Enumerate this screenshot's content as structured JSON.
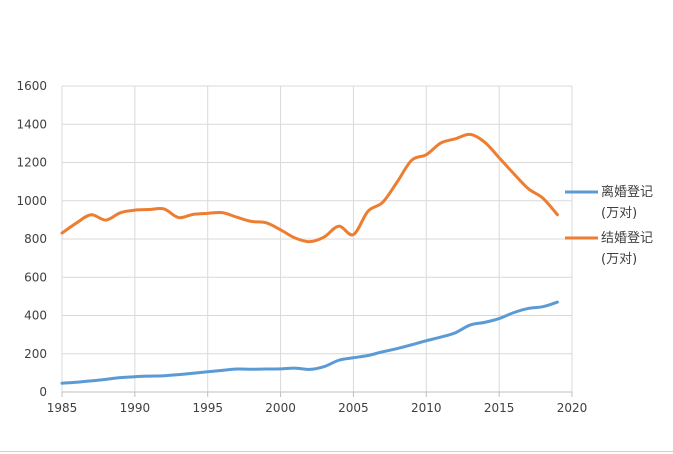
{
  "chart_data": {
    "type": "line",
    "title": "",
    "xlabel": "",
    "ylabel": "",
    "xlim": [
      1985,
      2020
    ],
    "ylim": [
      0,
      1600
    ],
    "xticks": [
      1985,
      1990,
      1995,
      2000,
      2005,
      2010,
      2015,
      2020
    ],
    "yticks": [
      0,
      200,
      400,
      600,
      800,
      1000,
      1200,
      1400,
      1600
    ],
    "grid": true,
    "legend_position": "right",
    "series": [
      {
        "name": "离婚登记\n(万对)",
        "color": "#5B9BD5",
        "x": [
          1985,
          1986,
          1987,
          1988,
          1989,
          1990,
          1991,
          1992,
          1993,
          1994,
          1995,
          1996,
          1997,
          1998,
          1999,
          2000,
          2001,
          2002,
          2003,
          2004,
          2005,
          2006,
          2007,
          2008,
          2009,
          2010,
          2011,
          2012,
          2013,
          2014,
          2015,
          2016,
          2017,
          2018,
          2019
        ],
        "values": [
          46,
          51,
          58,
          66,
          75,
          80,
          83,
          85,
          91,
          98,
          106,
          113,
          120,
          119,
          120,
          121,
          125,
          118,
          133,
          166,
          179,
          191,
          210,
          227,
          247,
          268,
          287,
          310,
          350,
          364,
          384,
          415,
          437,
          446,
          470
        ]
      },
      {
        "name": "结婚登记\n(万对)",
        "color": "#ED7D31",
        "x": [
          1985,
          1986,
          1987,
          1988,
          1989,
          1990,
          1991,
          1992,
          1993,
          1994,
          1995,
          1996,
          1997,
          1998,
          1999,
          2000,
          2001,
          2002,
          2003,
          2004,
          2005,
          2006,
          2007,
          2008,
          2009,
          2010,
          2011,
          2012,
          2013,
          2014,
          2015,
          2016,
          2017,
          2018,
          2019
        ],
        "values": [
          831,
          884,
          927,
          899,
          937,
          951,
          954,
          957,
          912,
          929,
          934,
          938,
          914,
          892,
          885,
          848,
          805,
          786,
          811,
          867,
          823,
          945,
          991,
          1098,
          1212,
          1241,
          1302,
          1324,
          1347,
          1307,
          1225,
          1142,
          1063,
          1014,
          927
        ]
      }
    ]
  }
}
